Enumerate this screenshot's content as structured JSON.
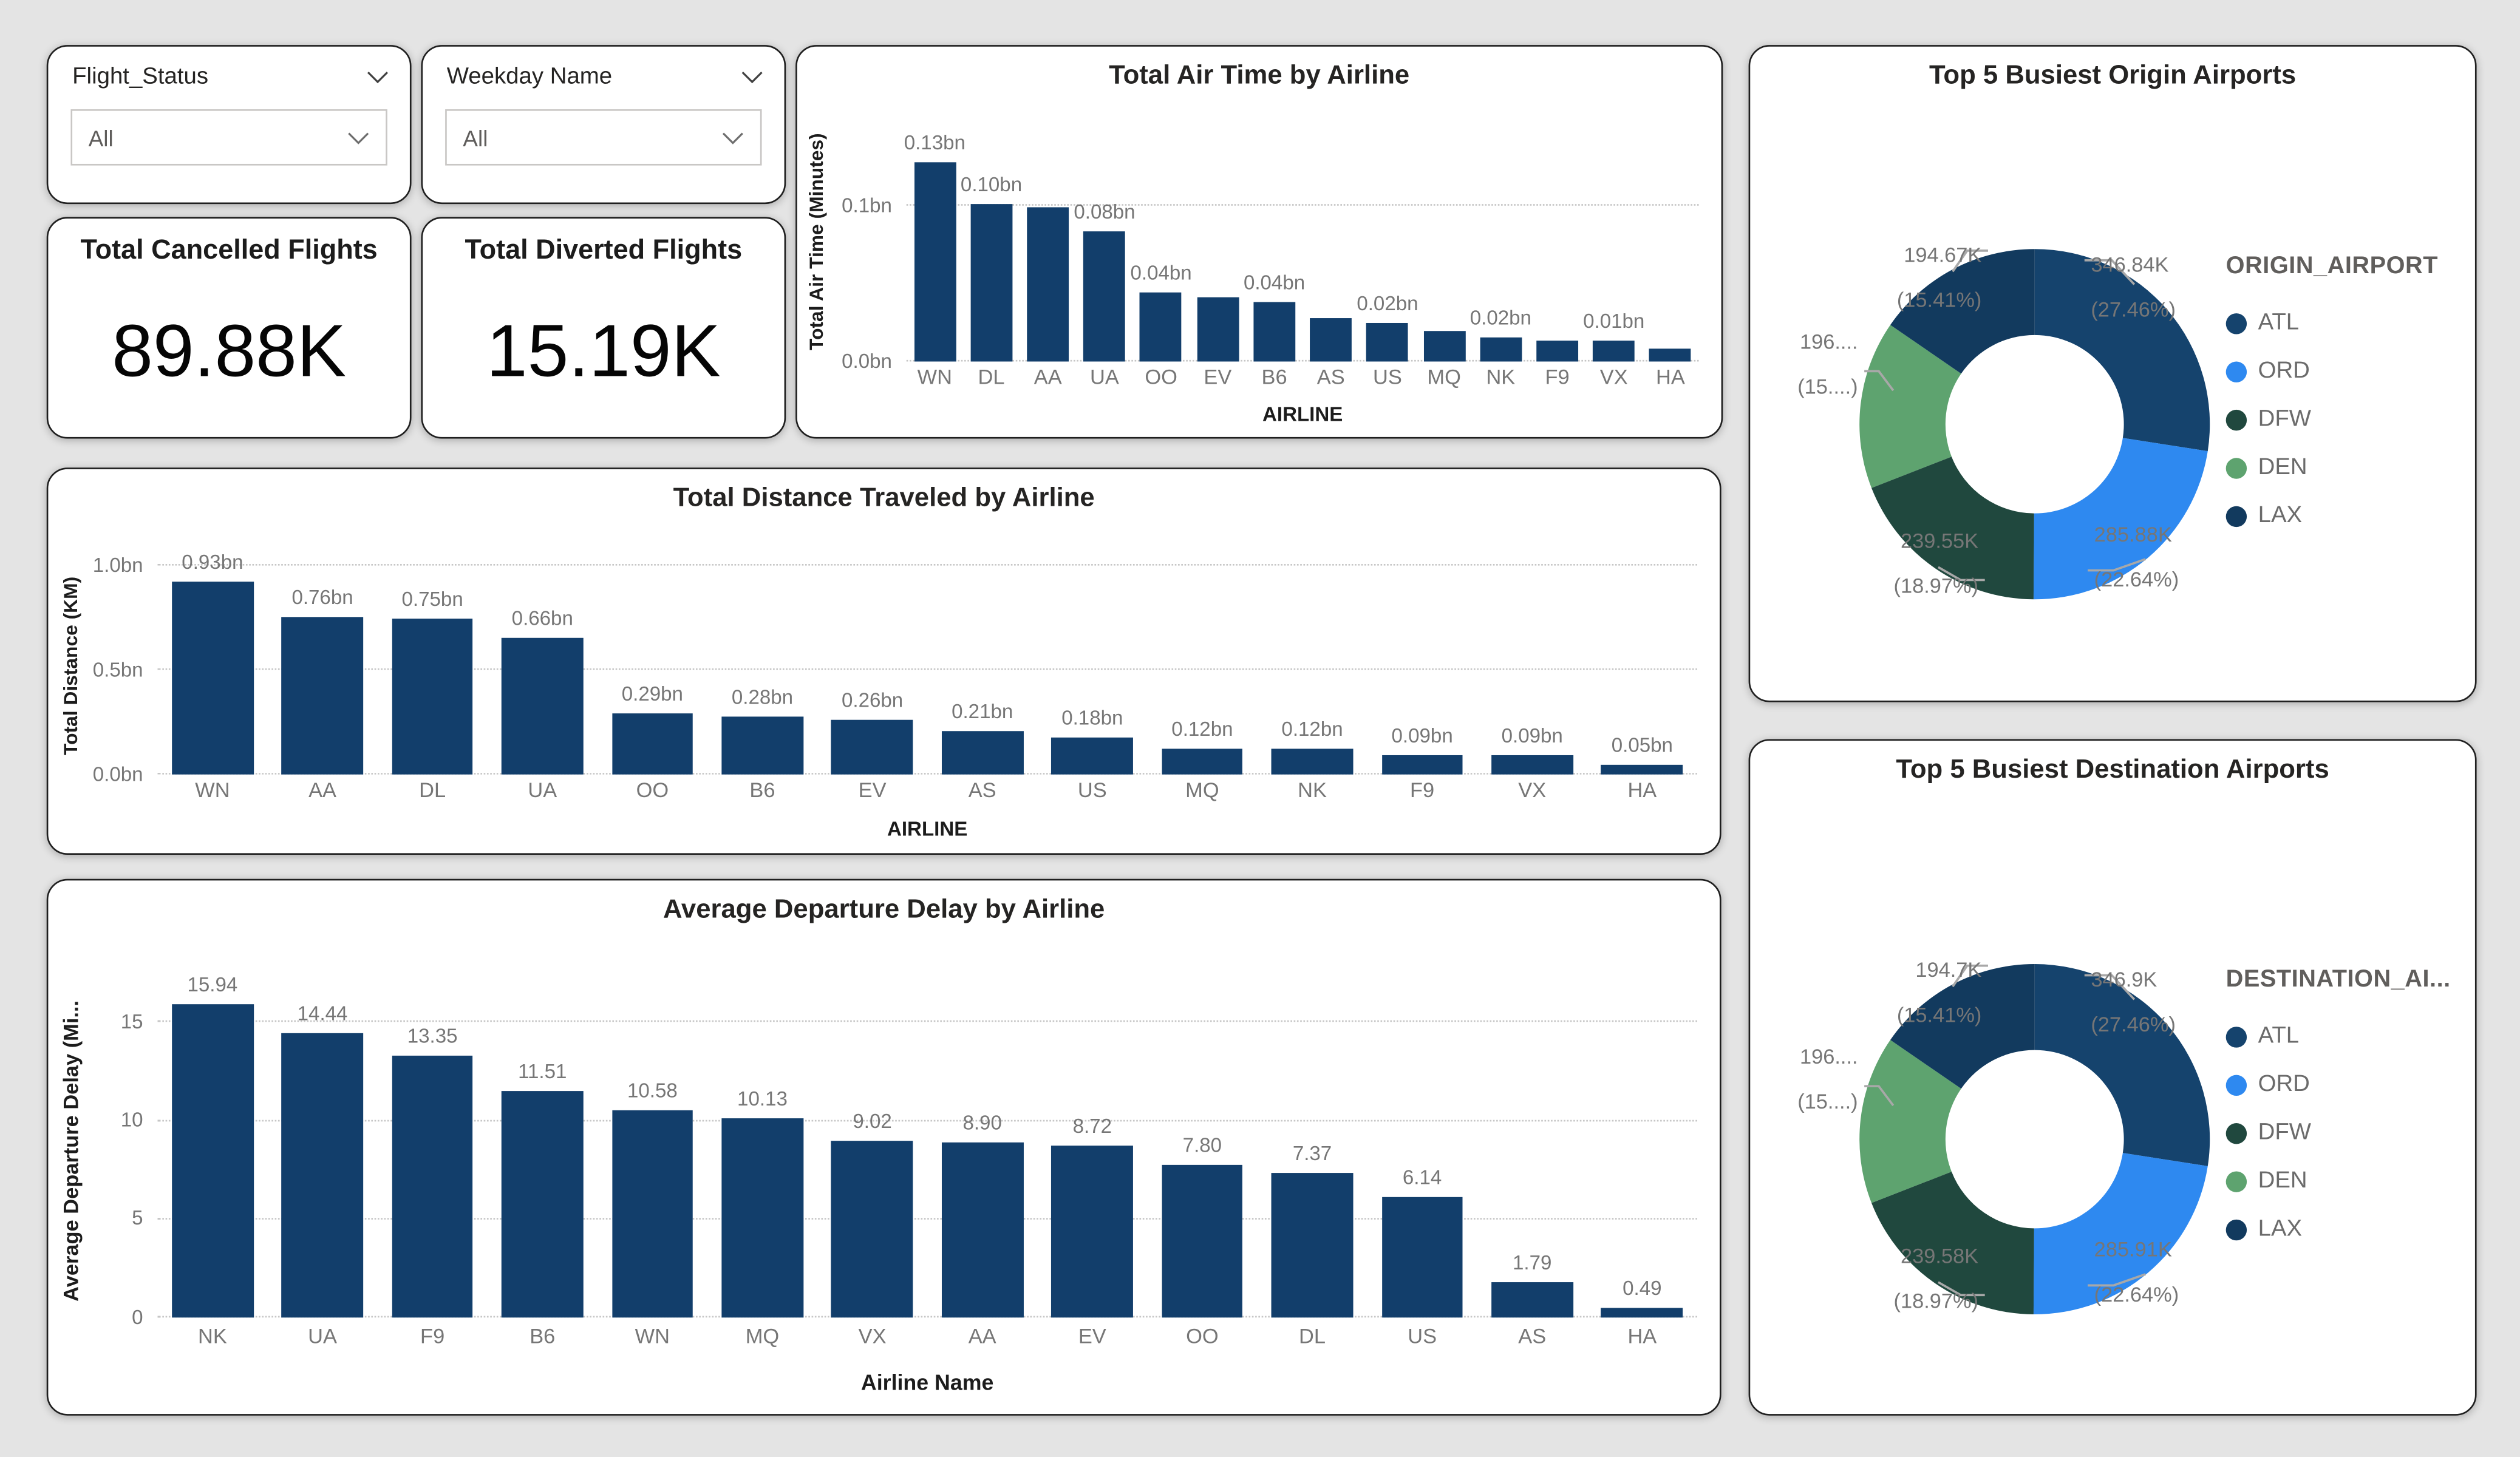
{
  "colors": {
    "page_bg": "#E4E4E4",
    "bar": "#123E6B",
    "grid": "#C6C6C6",
    "label_gray": "#767676"
  },
  "slicers": [
    {
      "header": "Flight_Status",
      "value": "All"
    },
    {
      "header": "Weekday Name",
      "value": "All"
    }
  ],
  "kpis": [
    {
      "title": "Total Cancelled Flights",
      "value": "89.88K"
    },
    {
      "title": "Total Diverted Flights",
      "value": "15.19K"
    }
  ],
  "chart_data": [
    {
      "id": "airtime",
      "type": "bar",
      "title": "Total Air Time by Airline",
      "xlabel": "AIRLINE",
      "ylabel": "Total Air Time (Minutes)",
      "categories": [
        "WN",
        "DL",
        "AA",
        "UA",
        "OO",
        "EV",
        "B6",
        "AS",
        "US",
        "MQ",
        "NK",
        "F9",
        "VX",
        "HA"
      ],
      "values": [
        0.128,
        0.101,
        0.099,
        0.084,
        0.044,
        0.041,
        0.038,
        0.028,
        0.025,
        0.02,
        0.016,
        0.013,
        0.013,
        0.008
      ],
      "bar_labels": [
        "0.13bn",
        "0.10bn",
        null,
        "0.08bn",
        "0.04bn",
        null,
        "0.04bn",
        null,
        "0.02bn",
        null,
        "0.02bn",
        null,
        "0.01bn",
        null
      ],
      "yticks": [
        {
          "value": 0,
          "label": "0.0bn"
        },
        {
          "value": 0.1,
          "label": "0.1bn"
        }
      ],
      "ylim": [
        0,
        0.155
      ],
      "bar_color": "#123E6B",
      "grid": true,
      "legend": "none"
    },
    {
      "id": "distance",
      "type": "bar",
      "title": "Total Distance Traveled by Airline",
      "xlabel": "AIRLINE",
      "ylabel": "Total Distance (KM)",
      "categories": [
        "WN",
        "AA",
        "DL",
        "UA",
        "OO",
        "B6",
        "EV",
        "AS",
        "US",
        "MQ",
        "NK",
        "F9",
        "VX",
        "HA"
      ],
      "values": [
        0.93,
        0.76,
        0.75,
        0.66,
        0.29,
        0.28,
        0.26,
        0.21,
        0.18,
        0.12,
        0.12,
        0.09,
        0.09,
        0.05
      ],
      "bar_labels": [
        "0.93bn",
        "0.76bn",
        "0.75bn",
        "0.66bn",
        "0.29bn",
        "0.28bn",
        "0.26bn",
        "0.21bn",
        "0.18bn",
        "0.12bn",
        "0.12bn",
        "0.09bn",
        "0.09bn",
        "0.05bn"
      ],
      "yticks": [
        {
          "value": 0,
          "label": "0.0bn"
        },
        {
          "value": 0.5,
          "label": "0.5bn"
        },
        {
          "value": 1.0,
          "label": "1.0bn"
        }
      ],
      "ylim": [
        0,
        1.05
      ],
      "bar_color": "#123E6B",
      "grid": true,
      "legend": "none"
    },
    {
      "id": "delay",
      "type": "bar",
      "title": "Average Departure Delay by Airline",
      "xlabel": "Airline Name",
      "ylabel": "Average Departure Delay (Mi...",
      "categories": [
        "NK",
        "UA",
        "F9",
        "B6",
        "WN",
        "MQ",
        "VX",
        "AA",
        "EV",
        "OO",
        "DL",
        "US",
        "AS",
        "HA"
      ],
      "values": [
        15.94,
        14.44,
        13.35,
        11.51,
        10.58,
        10.13,
        9.02,
        8.9,
        8.72,
        7.8,
        7.37,
        6.14,
        1.79,
        0.49
      ],
      "bar_labels": [
        "15.94",
        "14.44",
        "13.35",
        "11.51",
        "10.58",
        "10.13",
        "9.02",
        "8.90",
        "8.72",
        "7.80",
        "7.37",
        "6.14",
        "1.79",
        "0.49"
      ],
      "yticks": [
        {
          "value": 0,
          "label": "0"
        },
        {
          "value": 5,
          "label": "5"
        },
        {
          "value": 10,
          "label": "10"
        },
        {
          "value": 15,
          "label": "15"
        }
      ],
      "ylim": [
        0,
        17
      ],
      "bar_color": "#123E6B",
      "grid": true,
      "legend": "none"
    },
    {
      "id": "origin",
      "type": "pie",
      "title": "Top 5 Busiest Origin Airports",
      "legend_title": "ORIGIN_AIRPORT",
      "legend_position": "right",
      "slices": [
        {
          "name": "ATL",
          "pct": 27.46,
          "value_label": "346.84K",
          "pct_label": "(27.46%)",
          "color": "#15436D"
        },
        {
          "name": "ORD",
          "pct": 22.64,
          "value_label": "285.88K",
          "pct_label": "(22.64%)",
          "color": "#2E89F0"
        },
        {
          "name": "DFW",
          "pct": 18.97,
          "value_label": "239.55K",
          "pct_label": "(18.97%)",
          "color": "#20483E"
        },
        {
          "name": "DEN",
          "pct": 15.52,
          "value_label": "196....",
          "pct_label": "(15....)",
          "color": "#5EA36F"
        },
        {
          "name": "LAX",
          "pct": 15.41,
          "value_label": "194.67K",
          "pct_label": "(15.41%)",
          "color": "#123A5E"
        }
      ]
    },
    {
      "id": "destination",
      "type": "pie",
      "title": "Top 5 Busiest Destination Airports",
      "legend_title": "DESTINATION_AI...",
      "legend_position": "right",
      "slices": [
        {
          "name": "ATL",
          "pct": 27.46,
          "value_label": "346.9K",
          "pct_label": "(27.46%)",
          "color": "#15436D"
        },
        {
          "name": "ORD",
          "pct": 22.64,
          "value_label": "285.91K",
          "pct_label": "(22.64%)",
          "color": "#2E89F0"
        },
        {
          "name": "DFW",
          "pct": 18.97,
          "value_label": "239.58K",
          "pct_label": "(18.97%)",
          "color": "#20483E"
        },
        {
          "name": "DEN",
          "pct": 15.52,
          "value_label": "196....",
          "pct_label": "(15....)",
          "color": "#5EA36F"
        },
        {
          "name": "LAX",
          "pct": 15.41,
          "value_label": "194.7K",
          "pct_label": "(15.41%)",
          "color": "#123A5E"
        }
      ]
    }
  ]
}
